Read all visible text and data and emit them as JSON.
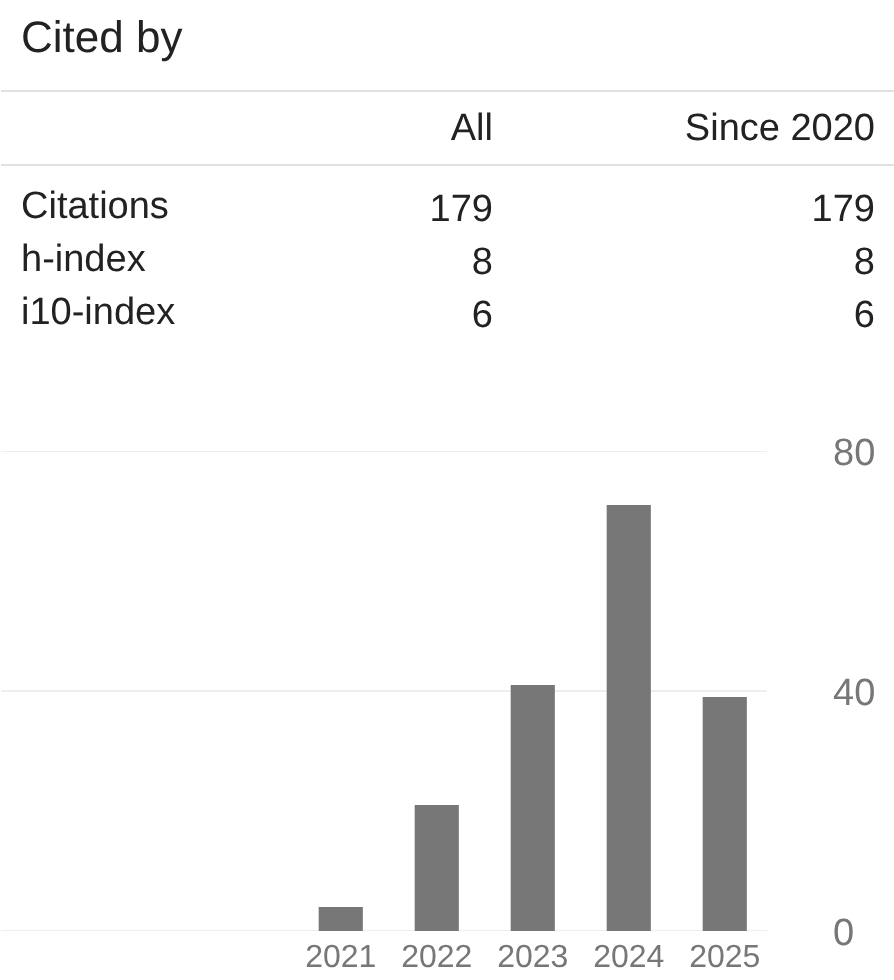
{
  "chart_data": [
    {
      "type": "other",
      "title": "Cited by",
      "categories": [
        "All",
        "Since 2020"
      ],
      "y_categories": [
        "Citations",
        "h-index",
        "i10-index"
      ],
      "cells": [
        [
          "179",
          "179"
        ],
        [
          "8",
          "8"
        ],
        [
          "6",
          "6"
        ]
      ]
    },
    {
      "type": "bar",
      "categories": [
        "2021",
        "2022",
        "2023",
        "2024",
        "2025"
      ],
      "values": [
        4,
        21,
        41,
        71,
        39
      ],
      "color": "#777777",
      "ylim": [
        0,
        80
      ],
      "yticks": [
        0,
        40,
        80
      ],
      "grid": "y"
    }
  ]
}
